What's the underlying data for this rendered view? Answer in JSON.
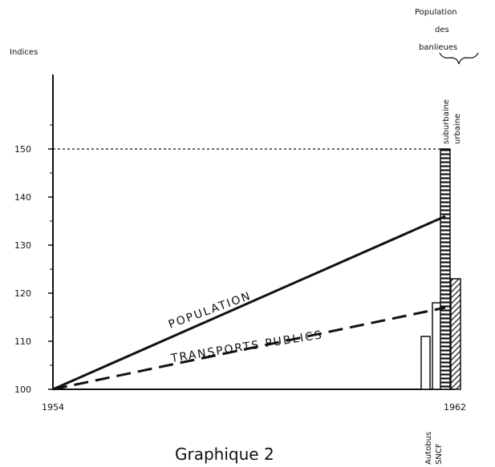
{
  "chart_data": {
    "type": "line",
    "ylabel": "Indices",
    "caption": "Graphique 2",
    "x_ticks": [
      "1954",
      "1962"
    ],
    "y_ticks": [
      100,
      110,
      120,
      130,
      140,
      150
    ],
    "ylim": [
      100,
      160
    ],
    "series": [
      {
        "name": "POPULATION",
        "style": "solid",
        "x": [
          1954,
          1962
        ],
        "values": [
          100,
          136
        ]
      },
      {
        "name": "TRANSPORTS PUBLICS",
        "style": "dashed",
        "x": [
          1954,
          1962
        ],
        "values": [
          100,
          117
        ]
      }
    ],
    "reference_line": {
      "value": 150,
      "style": "dotted"
    },
    "bars": [
      {
        "name": "Autobus",
        "value": 111
      },
      {
        "name": "SNCF",
        "value": 118
      }
    ],
    "bars_labels": [
      "Autobus",
      "SNCF"
    ],
    "suburb_group_label": "Population des banlieues",
    "suburb_bars": [
      {
        "name": "suburbaine",
        "value": 150,
        "pattern": "horizontal-hatch"
      },
      {
        "name": "urbaine",
        "value": 123,
        "pattern": "diagonal-hatch"
      }
    ],
    "colors": {
      "ink": "#111111",
      "background": "#ffffff"
    }
  }
}
